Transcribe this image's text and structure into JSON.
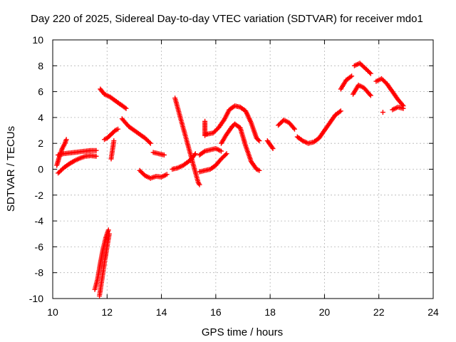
{
  "chart_data": {
    "type": "scatter",
    "title": "Day 220 of 2025, Sidereal Day-to-day VTEC variation (SDTVAR) for receiver mdo1",
    "xlabel": "GPS time / hours",
    "ylabel": "SDTVAR / TECUs",
    "xlim": [
      10,
      24
    ],
    "ylim": [
      -10,
      10
    ],
    "xticks": [
      10,
      12,
      14,
      16,
      18,
      20,
      22,
      24
    ],
    "yticks": [
      -10,
      -8,
      -6,
      -4,
      -2,
      0,
      2,
      4,
      6,
      8,
      10
    ],
    "grid": true,
    "marker": "+",
    "color": "#ff0000",
    "segments": [
      {
        "name": "early-upper-rise",
        "x": [
          10.15,
          10.25,
          10.35,
          10.45,
          10.5
        ],
        "y": [
          0.3,
          1.0,
          1.6,
          2.0,
          2.3
        ]
      },
      {
        "name": "early-band-top",
        "x": [
          10.2,
          10.4,
          10.6,
          10.8,
          11.0,
          11.2,
          11.4,
          11.6
        ],
        "y": [
          1.1,
          1.2,
          1.25,
          1.3,
          1.35,
          1.4,
          1.45,
          1.45
        ]
      },
      {
        "name": "early-band-bottom",
        "x": [
          10.2,
          10.4,
          10.6,
          10.8,
          11.0,
          11.2,
          11.4,
          11.6
        ],
        "y": [
          -0.3,
          0.1,
          0.4,
          0.65,
          0.85,
          1.0,
          1.05,
          1.0
        ]
      },
      {
        "name": "deep-dip-a",
        "x": [
          11.55,
          11.65,
          11.75,
          11.85,
          11.95,
          12.05
        ],
        "y": [
          -9.3,
          -8.5,
          -7.3,
          -6.2,
          -5.3,
          -4.7
        ]
      },
      {
        "name": "deep-dip-b",
        "x": [
          11.72,
          11.82,
          11.92,
          12.0,
          12.08
        ],
        "y": [
          -9.8,
          -8.4,
          -7.0,
          -6.0,
          -5.0
        ]
      },
      {
        "name": "post-dip-up",
        "x": [
          11.9,
          12.0,
          12.1,
          12.2,
          12.3,
          12.4
        ],
        "y": [
          2.3,
          2.4,
          2.6,
          2.8,
          3.0,
          3.1
        ]
      },
      {
        "name": "stray-a",
        "x": [
          12.15,
          12.25
        ],
        "y": [
          0.8,
          2.2
        ]
      },
      {
        "name": "high-decline",
        "x": [
          11.75,
          11.9,
          12.1,
          12.3,
          12.5,
          12.7
        ],
        "y": [
          6.2,
          5.8,
          5.6,
          5.3,
          5.0,
          4.7
        ]
      },
      {
        "name": "mid-decline",
        "x": [
          12.55,
          12.8,
          13.0,
          13.2,
          13.4,
          13.6
        ],
        "y": [
          3.9,
          3.3,
          3.0,
          2.7,
          2.4,
          2.0
        ]
      },
      {
        "name": "stray-b",
        "x": [
          13.7,
          14.1
        ],
        "y": [
          1.3,
          1.1
        ]
      },
      {
        "name": "low-trough",
        "x": [
          13.2,
          13.4,
          13.6,
          13.8,
          14.0,
          14.2
        ],
        "y": [
          -0.1,
          -0.5,
          -0.7,
          -0.55,
          -0.6,
          -0.4
        ]
      },
      {
        "name": "low-climb",
        "x": [
          14.4,
          14.6,
          14.8,
          15.0,
          15.1,
          15.25
        ],
        "y": [
          0.0,
          0.1,
          0.3,
          0.6,
          0.8,
          1.2
        ]
      },
      {
        "name": "stray-c",
        "x": [
          14.5,
          15.35,
          15.4
        ],
        "y": [
          5.5,
          -1.0,
          -1.2
        ]
      },
      {
        "name": "afternoon-lower",
        "x": [
          15.4,
          15.6,
          15.8,
          16.0,
          16.2,
          16.4
        ],
        "y": [
          -0.2,
          -0.1,
          0.0,
          0.3,
          0.8,
          1.2
        ]
      },
      {
        "name": "afternoon-mid",
        "x": [
          15.4,
          15.6,
          15.8,
          16.0,
          16.2
        ],
        "y": [
          1.1,
          1.4,
          1.5,
          1.6,
          1.4
        ]
      },
      {
        "name": "afternoon-column",
        "x": [
          15.6,
          15.6,
          15.6,
          15.6
        ],
        "y": [
          2.6,
          3.0,
          3.4,
          3.7
        ]
      },
      {
        "name": "peak-upper",
        "x": [
          15.65,
          15.9,
          16.1,
          16.3,
          16.5,
          16.7,
          16.9,
          17.1,
          17.3,
          17.5,
          17.6
        ],
        "y": [
          2.7,
          2.8,
          3.2,
          3.8,
          4.6,
          4.9,
          4.8,
          4.5,
          3.6,
          2.4,
          2.2
        ]
      },
      {
        "name": "peak-lower",
        "x": [
          16.2,
          16.4,
          16.6,
          16.7,
          16.9,
          17.1,
          17.3,
          17.5,
          17.6
        ],
        "y": [
          2.0,
          2.7,
          3.3,
          3.5,
          3.2,
          1.8,
          0.6,
          0.0,
          -0.1
        ]
      },
      {
        "name": "evening-small",
        "x": [
          17.9,
          18.1
        ],
        "y": [
          2.2,
          1.6
        ]
      },
      {
        "name": "evening-hump",
        "x": [
          18.3,
          18.5,
          18.7,
          18.9
        ],
        "y": [
          3.4,
          3.8,
          3.6,
          3.1
        ]
      },
      {
        "name": "night-valley",
        "x": [
          19.0,
          19.2,
          19.4,
          19.6,
          19.8,
          20.0,
          20.2,
          20.4,
          20.6
        ],
        "y": [
          2.5,
          2.2,
          2.0,
          2.1,
          2.4,
          3.0,
          3.6,
          4.2,
          4.5
        ]
      },
      {
        "name": "late-step",
        "x": [
          20.6,
          20.8,
          21.0
        ],
        "y": [
          6.2,
          6.9,
          7.2
        ]
      },
      {
        "name": "late-peak",
        "x": [
          21.1,
          21.3,
          21.5,
          21.7
        ],
        "y": [
          8.0,
          8.2,
          7.8,
          7.4
        ]
      },
      {
        "name": "late-mid",
        "x": [
          21.05,
          21.25,
          21.45,
          21.7
        ],
        "y": [
          5.8,
          6.5,
          6.3,
          5.7
        ]
      },
      {
        "name": "late-tail",
        "x": [
          21.9,
          22.1,
          22.3,
          22.5,
          22.7,
          22.9
        ],
        "y": [
          6.8,
          7.0,
          6.6,
          6.0,
          5.4,
          4.9
        ]
      },
      {
        "name": "late-bottom",
        "x": [
          22.5,
          22.7,
          22.9
        ],
        "y": [
          4.6,
          4.8,
          4.7
        ]
      },
      {
        "name": "late-stray",
        "x": [
          22.15
        ],
        "y": [
          4.4
        ]
      }
    ]
  }
}
